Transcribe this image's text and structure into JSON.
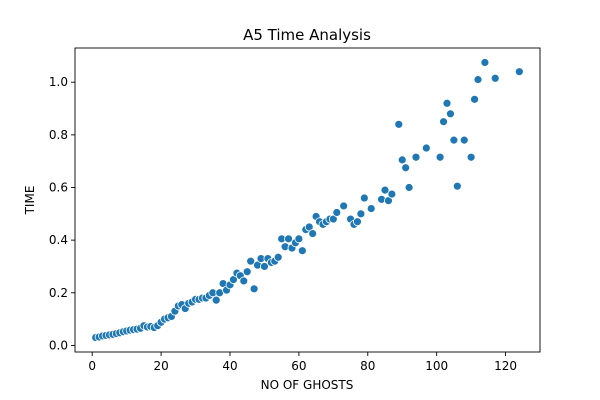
{
  "chart_data": {
    "type": "scatter",
    "title": "A5 Time Analysis",
    "xlabel": "NO OF GHOSTS",
    "ylabel": "TIME",
    "xlim": [
      -5,
      130
    ],
    "ylim": [
      -0.025,
      1.13
    ],
    "xticks": [
      0,
      20,
      40,
      60,
      80,
      100,
      120
    ],
    "yticks": [
      0.0,
      0.2,
      0.4,
      0.6,
      0.8,
      1.0
    ],
    "ytick_labels": [
      "0.0",
      "0.2",
      "0.4",
      "0.6",
      "0.8",
      "1.0"
    ],
    "grid": false,
    "legend": "none",
    "marker_color": "#1f77b4",
    "series": [
      {
        "x": [
          1,
          2,
          3,
          4,
          5,
          6,
          7,
          8,
          9,
          10,
          11,
          12,
          13,
          14,
          15,
          16,
          17,
          18,
          19,
          20,
          21,
          22,
          23,
          24,
          25,
          26,
          27,
          28,
          29,
          30,
          31,
          32,
          33,
          34,
          35,
          36,
          37,
          38,
          39,
          40,
          41,
          42,
          43,
          44,
          45,
          46,
          47,
          48,
          49,
          50,
          51,
          52,
          53,
          54,
          55,
          56,
          57,
          58,
          59,
          60,
          61,
          62,
          63,
          64,
          65,
          66,
          67,
          68,
          69,
          70,
          71,
          73,
          75,
          76,
          77,
          78,
          79,
          81,
          84,
          85,
          86,
          87,
          89,
          90,
          91,
          92,
          94,
          97,
          101,
          102,
          103,
          104,
          105,
          106,
          108,
          110,
          111,
          112,
          114,
          117,
          124
        ],
        "y": [
          0.03,
          0.032,
          0.036,
          0.038,
          0.04,
          0.042,
          0.045,
          0.048,
          0.052,
          0.055,
          0.058,
          0.06,
          0.062,
          0.065,
          0.075,
          0.07,
          0.072,
          0.068,
          0.075,
          0.088,
          0.1,
          0.105,
          0.11,
          0.13,
          0.15,
          0.155,
          0.14,
          0.16,
          0.165,
          0.175,
          0.175,
          0.18,
          0.18,
          0.19,
          0.2,
          0.172,
          0.2,
          0.235,
          0.21,
          0.23,
          0.25,
          0.275,
          0.265,
          0.245,
          0.28,
          0.32,
          0.215,
          0.305,
          0.33,
          0.3,
          0.33,
          0.315,
          0.32,
          0.335,
          0.405,
          0.375,
          0.405,
          0.37,
          0.39,
          0.405,
          0.36,
          0.44,
          0.45,
          0.425,
          0.49,
          0.47,
          0.46,
          0.47,
          0.48,
          0.48,
          0.505,
          0.53,
          0.48,
          0.46,
          0.47,
          0.5,
          0.56,
          0.52,
          0.555,
          0.59,
          0.55,
          0.575,
          0.84,
          0.705,
          0.675,
          0.6,
          0.715,
          0.75,
          0.715,
          0.85,
          0.92,
          0.88,
          0.78,
          0.605,
          0.78,
          0.715,
          0.935,
          1.01,
          1.075,
          1.015,
          1.04
        ]
      }
    ]
  }
}
